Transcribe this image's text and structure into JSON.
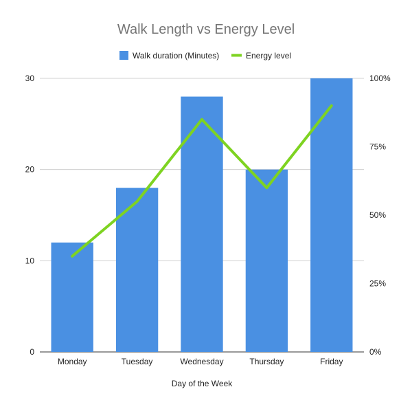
{
  "chart_data": {
    "type": "bar",
    "title": "Walk Length vs Energy Level",
    "xlabel": "Day of the Week",
    "ylabel": "",
    "y2label": "",
    "categories": [
      "Monday",
      "Tuesday",
      "Wednesday",
      "Thursday",
      "Friday"
    ],
    "series": [
      {
        "name": "Walk duration (Minutes)",
        "type": "bar",
        "axis": "left",
        "color": "#4a90e2",
        "values": [
          12,
          18,
          28,
          20,
          30
        ]
      },
      {
        "name": "Energy level",
        "type": "line",
        "axis": "right",
        "color": "#7ed321",
        "values": [
          0.35,
          0.55,
          0.85,
          0.6,
          0.9
        ]
      }
    ],
    "ylim": [
      0,
      30
    ],
    "y_ticks": [
      0,
      10,
      20,
      30
    ],
    "y_tick_labels": [
      "0",
      "10",
      "20",
      "30"
    ],
    "y2lim": [
      0,
      1
    ],
    "y2_ticks": [
      0,
      0.25,
      0.5,
      0.75,
      1
    ],
    "y2_tick_labels": [
      "0%",
      "25%",
      "50%",
      "75%",
      "100%"
    ],
    "grid": true,
    "legend_position": "top"
  }
}
